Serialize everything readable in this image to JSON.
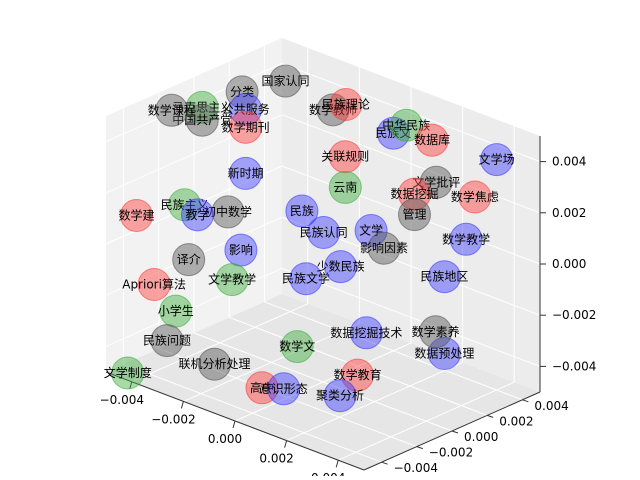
{
  "chart_data": {
    "type": "scatter",
    "subtype": "3d-scatter-with-labels",
    "title": "",
    "xlabel": "",
    "ylabel": "",
    "zlabel": "",
    "xlim": [
      -0.005,
      0.005
    ],
    "ylim": [
      -0.005,
      0.005
    ],
    "zlim": [
      -0.005,
      0.005
    ],
    "xticks": [
      "−0.004",
      "−0.002",
      "0.000",
      "0.002",
      "0.004"
    ],
    "yticks": [
      "−0.004",
      "−0.002",
      "0.000",
      "0.002",
      "0.004"
    ],
    "zticks": [
      "−0.004",
      "−0.002",
      "0.000",
      "0.002",
      "0.004"
    ],
    "grid": true,
    "legend": "none",
    "colors": {
      "red": "#ff3b3b",
      "green": "#3fae3f",
      "blue": "#3b3bff",
      "gray": "#555555"
    },
    "points": [
      {
        "label": "国家认同",
        "color": "gray",
        "x": -0.0035,
        "y": 0.003,
        "z": 0.0045
      },
      {
        "label": "分类",
        "color": "gray",
        "x": -0.0045,
        "y": 0.002,
        "z": 0.004
      },
      {
        "label": "民族理论",
        "color": "red",
        "x": -0.0015,
        "y": 0.0035,
        "z": 0.0042
      },
      {
        "label": "数学教师",
        "color": "gray",
        "x": -0.002,
        "y": 0.0035,
        "z": 0.0038
      },
      {
        "label": "中华民族",
        "color": "green",
        "x": 0.0005,
        "y": 0.004,
        "z": 0.004
      },
      {
        "label": "民族文",
        "color": "blue",
        "x": 0.0,
        "y": 0.004,
        "z": 0.0035
      },
      {
        "label": "数据库",
        "color": "red",
        "x": 0.0015,
        "y": 0.004,
        "z": 0.0038
      },
      {
        "label": "数学课程",
        "color": "gray",
        "x": -0.0045,
        "y": -0.002,
        "z": 0.0045
      },
      {
        "label": "马克思主义",
        "color": "green",
        "x": -0.004,
        "y": -0.001,
        "z": 0.0045
      },
      {
        "label": "公共服务",
        "color": "blue",
        "x": -0.003,
        "y": 0.0,
        "z": 0.0045
      },
      {
        "label": "中国共产党",
        "color": "gray",
        "x": -0.004,
        "y": -0.001,
        "z": 0.004
      },
      {
        "label": "数学期刊",
        "color": "red",
        "x": -0.003,
        "y": 0.0,
        "z": 0.0038
      },
      {
        "label": "文学批评",
        "color": "gray",
        "x": 0.002,
        "y": 0.0035,
        "z": 0.0025
      },
      {
        "label": "文学场",
        "color": "blue",
        "x": 0.004,
        "y": 0.004,
        "z": 0.004
      },
      {
        "label": "数学焦虑",
        "color": "red",
        "x": 0.0035,
        "y": 0.0035,
        "z": 0.0025
      },
      {
        "label": "关联规则",
        "color": "red",
        "x": -0.0005,
        "y": 0.002,
        "z": 0.003
      },
      {
        "label": "数据挖掘",
        "color": "red",
        "x": 0.0015,
        "y": 0.003,
        "z": 0.002
      },
      {
        "label": "新时期",
        "color": "blue",
        "x": -0.003,
        "y": 0.0,
        "z": 0.002
      },
      {
        "label": "云南",
        "color": "green",
        "x": -0.0005,
        "y": 0.002,
        "z": 0.0018
      },
      {
        "label": "管理",
        "color": "gray",
        "x": 0.0015,
        "y": 0.003,
        "z": 0.0012
      },
      {
        "label": "民族主义",
        "color": "green",
        "x": -0.004,
        "y": -0.002,
        "z": 0.001
      },
      {
        "label": "数学建",
        "color": "red",
        "x": -0.0045,
        "y": -0.004,
        "z": 0.001
      },
      {
        "label": "教学",
        "color": "blue",
        "x": -0.0035,
        "y": -0.002,
        "z": 0.0008
      },
      {
        "label": "初中数学",
        "color": "gray",
        "x": -0.003,
        "y": -0.001,
        "z": 0.0008
      },
      {
        "label": "民族",
        "color": "blue",
        "x": -0.0015,
        "y": 0.001,
        "z": 0.0008
      },
      {
        "label": "文学",
        "color": "blue",
        "x": 0.0005,
        "y": 0.002,
        "z": 0.0005
      },
      {
        "label": "民族认同",
        "color": "blue",
        "x": -0.001,
        "y": 0.0015,
        "z": 0.0
      },
      {
        "label": "影响因素",
        "color": "gray",
        "x": 0.001,
        "y": 0.002,
        "z": 0.0
      },
      {
        "label": "数学教学",
        "color": "blue",
        "x": 0.0035,
        "y": 0.003,
        "z": 0.001
      },
      {
        "label": "民族地区",
        "color": "blue",
        "x": 0.003,
        "y": 0.0025,
        "z": -0.0005
      },
      {
        "label": "少数民族",
        "color": "blue",
        "x": 0.0,
        "y": 0.001,
        "z": -0.0008
      },
      {
        "label": "译介",
        "color": "gray",
        "x": -0.0035,
        "y": -0.0025,
        "z": -0.0008
      },
      {
        "label": "影响",
        "color": "blue",
        "x": -0.0025,
        "y": -0.001,
        "z": -0.0005
      },
      {
        "label": "民族文学",
        "color": "blue",
        "x": -0.001,
        "y": 0.0005,
        "z": -0.0015
      },
      {
        "label": "文学教学",
        "color": "green",
        "x": -0.0025,
        "y": -0.0015,
        "z": -0.0015
      },
      {
        "label": "Apriori算法",
        "color": "red",
        "x": -0.0045,
        "y": -0.003,
        "z": -0.002
      },
      {
        "label": "小学生",
        "color": "green",
        "x": -0.004,
        "y": -0.0025,
        "z": -0.003
      },
      {
        "label": "数学素养",
        "color": "gray",
        "x": 0.003,
        "y": 0.002,
        "z": -0.0025
      },
      {
        "label": "数据预处理",
        "color": "blue",
        "x": 0.003,
        "y": 0.0025,
        "z": -0.0035
      },
      {
        "label": "数据挖掘技术",
        "color": "blue",
        "x": 0.001,
        "y": 0.001,
        "z": -0.003
      },
      {
        "label": "民族问题",
        "color": "gray",
        "x": -0.004,
        "y": -0.003,
        "z": -0.004
      },
      {
        "label": "数学文",
        "color": "green",
        "x": -0.001,
        "y": 0.0,
        "z": -0.004
      },
      {
        "label": "数学教育",
        "color": "red",
        "x": 0.001,
        "y": 0.0005,
        "z": -0.0045
      },
      {
        "label": "联机分析处理",
        "color": "gray",
        "x": -0.0025,
        "y": -0.0025,
        "z": -0.0045
      },
      {
        "label": "高中",
        "color": "red",
        "x": -0.001,
        "y": -0.002,
        "z": -0.005
      },
      {
        "label": "意识形态",
        "color": "blue",
        "x": -0.0005,
        "y": -0.0015,
        "z": -0.005
      },
      {
        "label": "聚类分析",
        "color": "blue",
        "x": 0.001,
        "y": -0.0005,
        "z": -0.005
      },
      {
        "label": "文学制度",
        "color": "green",
        "x": -0.0045,
        "y": -0.0045,
        "z": -0.005
      }
    ]
  }
}
